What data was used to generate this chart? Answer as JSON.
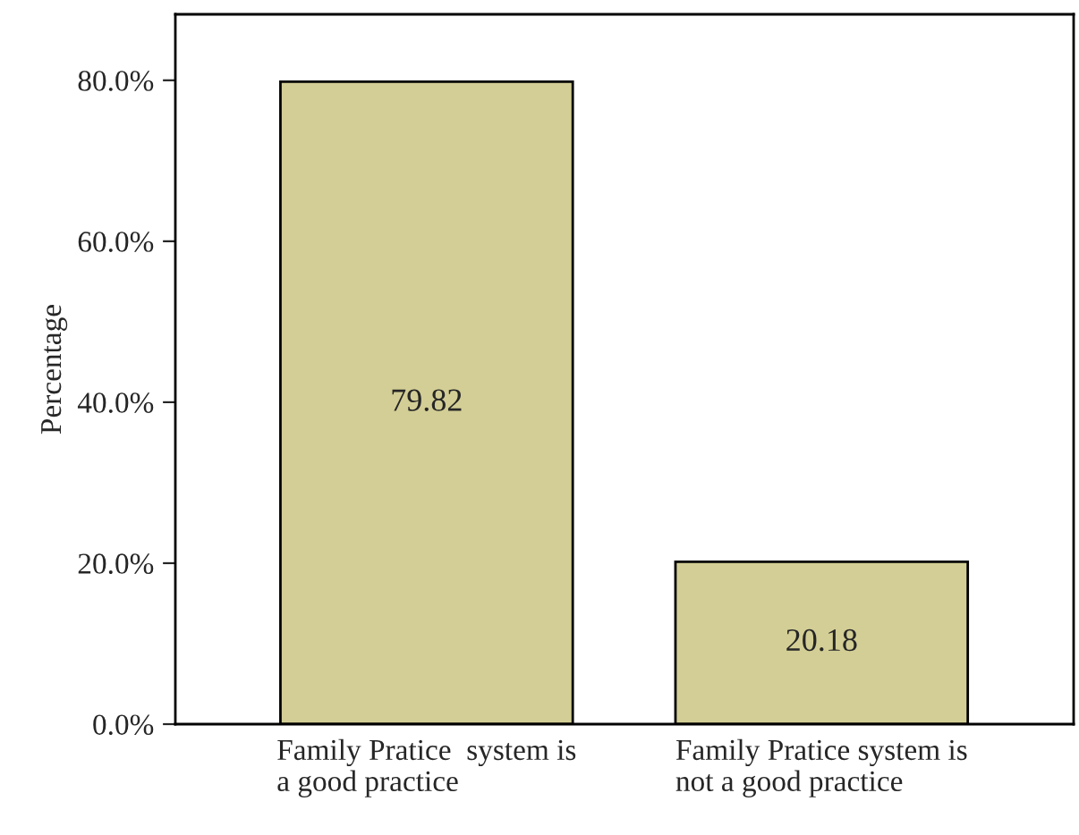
{
  "chart_data": {
    "type": "bar",
    "ylabel": "Percentage",
    "categories": [
      "Family Pratice  system is\na good practice",
      "Family Pratice system is\nnot a good practice"
    ],
    "values": [
      79.82,
      20.18
    ],
    "color": "#d3ce95",
    "ylim": [
      0,
      88.2
    ],
    "yticks": [
      {
        "value": 0,
        "label": "0.0%"
      },
      {
        "value": 20,
        "label": "20.0%"
      },
      {
        "value": 40,
        "label": "40.0%"
      },
      {
        "value": 60,
        "label": "60.0%"
      },
      {
        "value": 80,
        "label": "80.0%"
      }
    ],
    "data_labels": true,
    "grid": false,
    "legend": false
  }
}
